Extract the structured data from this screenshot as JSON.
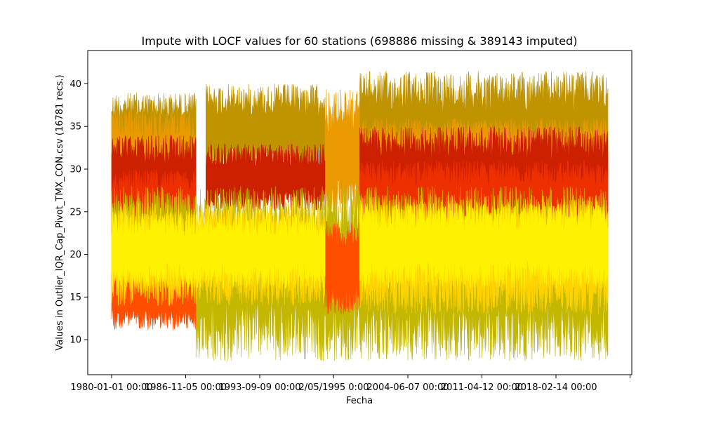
{
  "chart_data": {
    "type": "line",
    "title": "Impute with LOCF values for 60 stations (698886 missing & 389143 imputed)",
    "xlabel": "Fecha",
    "ylabel": "Values in Outlier_IQR_Cap_Pivot_TMX_CON.csv (16781 recs.)",
    "x_tick_labels": [
      "1980-01-01 00:00",
      "1986-11-05 00:00",
      "1993-09-09 00:00",
      "2/05/1995 0:00",
      "2004-06-07 00:00",
      "2011-04-12 00:00",
      "2018-02-14 00:00",
      ""
    ],
    "y_ticks": [
      10,
      15,
      20,
      25,
      30,
      35,
      40
    ],
    "ylim": [
      5.9,
      43.9
    ],
    "grid": false,
    "series_colors": [
      "#bf9400",
      "#e89a00",
      "#cc2000",
      "#ee3000",
      "#ff4e00",
      "#c3b700",
      "#ffd300",
      "#fff200"
    ],
    "bands": [
      {
        "name": "",
        "color": "#bf9400",
        "segments": [
          {
            "x0": 0.0,
            "x1": 0.17,
            "lo": 29,
            "hi": 39
          },
          {
            "x0": 0.19,
            "x1": 0.43,
            "lo": 29,
            "hi": 40
          },
          {
            "x0": 0.5,
            "x1": 1.0,
            "lo": 28,
            "hi": 41.5
          }
        ]
      },
      {
        "name": "",
        "color": "#e89a00",
        "segments": [
          {
            "x0": 0.0,
            "x1": 0.17,
            "lo": 26,
            "hi": 37
          },
          {
            "x0": 0.43,
            "x1": 0.5,
            "lo": 24,
            "hi": 39.5
          },
          {
            "x0": 0.5,
            "x1": 1.0,
            "lo": 27,
            "hi": 36
          }
        ]
      },
      {
        "name": "",
        "color": "#cc2000",
        "segments": [
          {
            "x0": 0.0,
            "x1": 0.17,
            "lo": 24,
            "hi": 34
          },
          {
            "x0": 0.19,
            "x1": 0.43,
            "lo": 25,
            "hi": 33
          },
          {
            "x0": 0.5,
            "x1": 1.0,
            "lo": 24,
            "hi": 35
          }
        ]
      },
      {
        "name": "",
        "color": "#ee3000",
        "segments": [
          {
            "x0": 0.0,
            "x1": 0.17,
            "lo": 22,
            "hi": 30
          },
          {
            "x0": 0.5,
            "x1": 1.0,
            "lo": 22,
            "hi": 31
          }
        ]
      },
      {
        "name": "",
        "color": "#c3b700",
        "segments": [
          {
            "x0": 0.0,
            "x1": 0.17,
            "lo": 15,
            "hi": 28
          },
          {
            "x0": 0.17,
            "x1": 1.0,
            "lo": 7.5,
            "hi": 28
          }
        ]
      },
      {
        "name": "",
        "color": "#ff4e00",
        "segments": [
          {
            "x0": 0.0,
            "x1": 0.17,
            "lo": 11,
            "hi": 19
          },
          {
            "x0": 0.43,
            "x1": 0.5,
            "lo": 13,
            "hi": 24
          }
        ]
      },
      {
        "name": "",
        "color": "#ffd300",
        "segments": [
          {
            "x0": 0.0,
            "x1": 0.43,
            "lo": 14,
            "hi": 26
          },
          {
            "x0": 0.5,
            "x1": 1.0,
            "lo": 13,
            "hi": 27
          }
        ]
      },
      {
        "name": "",
        "color": "#fff200",
        "segments": [
          {
            "x0": 0.0,
            "x1": 0.43,
            "lo": 16,
            "hi": 25
          },
          {
            "x0": 0.5,
            "x1": 1.0,
            "lo": 16,
            "hi": 26
          }
        ]
      }
    ]
  }
}
